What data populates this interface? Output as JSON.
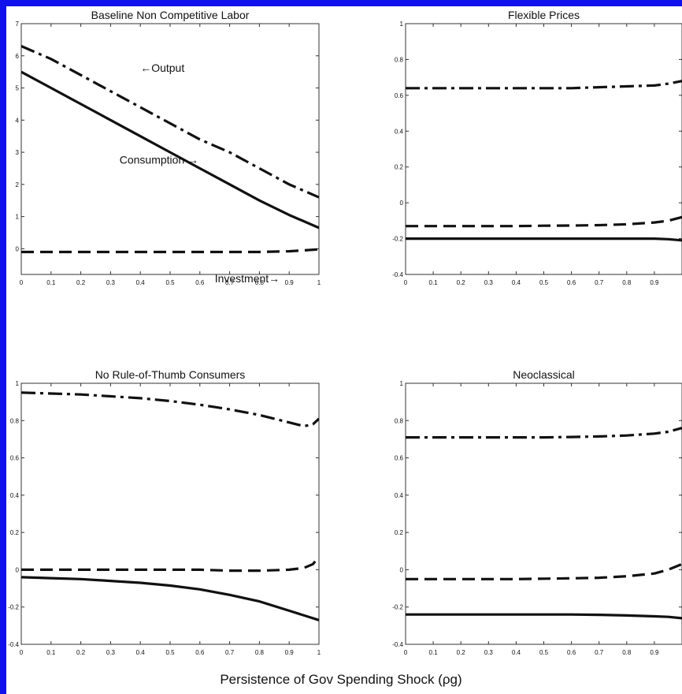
{
  "figure": {
    "xlabel": "Persistence of Gov Spending Shock (ρg)"
  },
  "chart_data": [
    {
      "type": "line",
      "title": "Baseline Non Competitive Labor",
      "xlim": [
        0,
        1
      ],
      "ylim": [
        -0.8,
        7
      ],
      "xticks": [
        "0",
        "0.1",
        "0.2",
        "0.3",
        "0.4",
        "0.5",
        "0.6",
        "0.7",
        "0.8",
        "0.9",
        "1"
      ],
      "yticks": [
        7,
        6,
        5,
        4,
        3,
        2,
        1,
        0
      ],
      "annotations": [
        {
          "text": "←Output",
          "x": 0.4,
          "y": 5.5
        },
        {
          "text": "Consumption →",
          "x": 0.33,
          "y": 2.65
        },
        {
          "text": "Investment→",
          "x": 0.65,
          "y": -1.05
        }
      ],
      "series": [
        {
          "name": "Output",
          "style": "dashdot",
          "x": [
            0,
            0.1,
            0.2,
            0.3,
            0.4,
            0.5,
            0.6,
            0.7,
            0.8,
            0.9,
            1
          ],
          "y": [
            6.3,
            5.9,
            5.4,
            4.9,
            4.4,
            3.9,
            3.4,
            3.0,
            2.5,
            2.0,
            1.6
          ]
        },
        {
          "name": "Consumption",
          "style": "solid",
          "x": [
            0,
            0.1,
            0.2,
            0.3,
            0.4,
            0.5,
            0.6,
            0.7,
            0.8,
            0.9,
            1
          ],
          "y": [
            5.5,
            5.0,
            4.5,
            4.0,
            3.5,
            3.0,
            2.5,
            2.0,
            1.5,
            1.05,
            0.65
          ]
        },
        {
          "name": "Investment",
          "style": "dashed",
          "x": [
            0,
            0.1,
            0.2,
            0.3,
            0.4,
            0.5,
            0.6,
            0.7,
            0.8,
            0.9,
            1
          ],
          "y": [
            -0.1,
            -0.1,
            -0.1,
            -0.1,
            -0.1,
            -0.1,
            -0.1,
            -0.1,
            -0.1,
            -0.08,
            -0.02
          ]
        }
      ]
    },
    {
      "type": "line",
      "title": "Flexible Prices",
      "xlim": [
        0,
        1
      ],
      "ylim": [
        -0.4,
        1
      ],
      "xticks": [
        "0",
        "0.1",
        "0.2",
        "0.3",
        "0.4",
        "0.5",
        "0.6",
        "0.7",
        "0.8",
        "0.9"
      ],
      "yticks": [
        1,
        0.8,
        0.6,
        0.4,
        0.2,
        0,
        -0.2,
        -0.4
      ],
      "series": [
        {
          "style": "dashdot",
          "x": [
            0,
            0.1,
            0.2,
            0.3,
            0.4,
            0.5,
            0.6,
            0.7,
            0.8,
            0.9,
            0.95,
            1
          ],
          "y": [
            0.64,
            0.64,
            0.64,
            0.64,
            0.64,
            0.64,
            0.64,
            0.645,
            0.65,
            0.655,
            0.665,
            0.68
          ]
        },
        {
          "style": "dashed",
          "x": [
            0,
            0.1,
            0.2,
            0.3,
            0.4,
            0.5,
            0.6,
            0.7,
            0.8,
            0.9,
            0.95,
            1
          ],
          "y": [
            -0.13,
            -0.13,
            -0.13,
            -0.13,
            -0.13,
            -0.128,
            -0.127,
            -0.125,
            -0.12,
            -0.11,
            -0.1,
            -0.08
          ]
        },
        {
          "style": "solid",
          "x": [
            0,
            0.1,
            0.2,
            0.3,
            0.4,
            0.5,
            0.6,
            0.7,
            0.8,
            0.9,
            0.95,
            1
          ],
          "y": [
            -0.2,
            -0.2,
            -0.2,
            -0.2,
            -0.2,
            -0.2,
            -0.2,
            -0.2,
            -0.2,
            -0.2,
            -0.203,
            -0.21
          ]
        }
      ]
    },
    {
      "type": "line",
      "title": "No Rule-of-Thumb Consumers",
      "xlim": [
        0,
        1
      ],
      "ylim": [
        -0.4,
        1
      ],
      "xticks": [
        "0",
        "0.1",
        "0.2",
        "0.3",
        "0.4",
        "0.5",
        "0.6",
        "0.7",
        "0.8",
        "0.9",
        "1"
      ],
      "yticks": [
        1,
        0.8,
        0.6,
        0.4,
        0.2,
        0,
        -0.2,
        -0.4
      ],
      "series": [
        {
          "style": "dashdot",
          "x": [
            0,
            0.1,
            0.2,
            0.3,
            0.4,
            0.5,
            0.6,
            0.7,
            0.8,
            0.9,
            0.95,
            0.98,
            1
          ],
          "y": [
            0.95,
            0.945,
            0.94,
            0.93,
            0.92,
            0.905,
            0.885,
            0.86,
            0.83,
            0.79,
            0.77,
            0.78,
            0.81
          ]
        },
        {
          "style": "dashed",
          "x": [
            0,
            0.1,
            0.2,
            0.3,
            0.4,
            0.5,
            0.6,
            0.7,
            0.8,
            0.9,
            0.95,
            0.98,
            1
          ],
          "y": [
            0,
            0,
            0,
            0,
            0,
            0,
            0,
            -0.005,
            -0.005,
            0,
            0.01,
            0.03,
            0.07
          ]
        },
        {
          "style": "solid",
          "x": [
            0,
            0.1,
            0.2,
            0.3,
            0.4,
            0.5,
            0.6,
            0.7,
            0.8,
            0.9,
            1
          ],
          "y": [
            -0.04,
            -0.045,
            -0.05,
            -0.06,
            -0.07,
            -0.085,
            -0.105,
            -0.135,
            -0.17,
            -0.22,
            -0.27
          ]
        }
      ]
    },
    {
      "type": "line",
      "title": "Neoclassical",
      "xlim": [
        0,
        1
      ],
      "ylim": [
        -0.4,
        1
      ],
      "xticks": [
        "0",
        "0.1",
        "0.2",
        "0.3",
        "0.4",
        "0.5",
        "0.6",
        "0.7",
        "0.8",
        "0.9"
      ],
      "yticks": [
        1,
        0.8,
        0.6,
        0.4,
        0.2,
        0,
        -0.2,
        -0.4
      ],
      "series": [
        {
          "style": "dashdot",
          "x": [
            0,
            0.1,
            0.2,
            0.3,
            0.4,
            0.5,
            0.6,
            0.7,
            0.8,
            0.9,
            0.95,
            1
          ],
          "y": [
            0.71,
            0.71,
            0.71,
            0.71,
            0.71,
            0.71,
            0.712,
            0.715,
            0.72,
            0.73,
            0.74,
            0.76
          ]
        },
        {
          "style": "dashed",
          "x": [
            0,
            0.1,
            0.2,
            0.3,
            0.4,
            0.5,
            0.6,
            0.7,
            0.8,
            0.9,
            0.95,
            1
          ],
          "y": [
            -0.05,
            -0.05,
            -0.05,
            -0.05,
            -0.05,
            -0.048,
            -0.046,
            -0.043,
            -0.035,
            -0.02,
            0,
            0.03
          ]
        },
        {
          "style": "solid",
          "x": [
            0,
            0.1,
            0.2,
            0.3,
            0.4,
            0.5,
            0.6,
            0.7,
            0.8,
            0.9,
            0.95,
            1
          ],
          "y": [
            -0.24,
            -0.24,
            -0.24,
            -0.24,
            -0.24,
            -0.24,
            -0.24,
            -0.242,
            -0.245,
            -0.25,
            -0.253,
            -0.26
          ]
        }
      ]
    }
  ]
}
